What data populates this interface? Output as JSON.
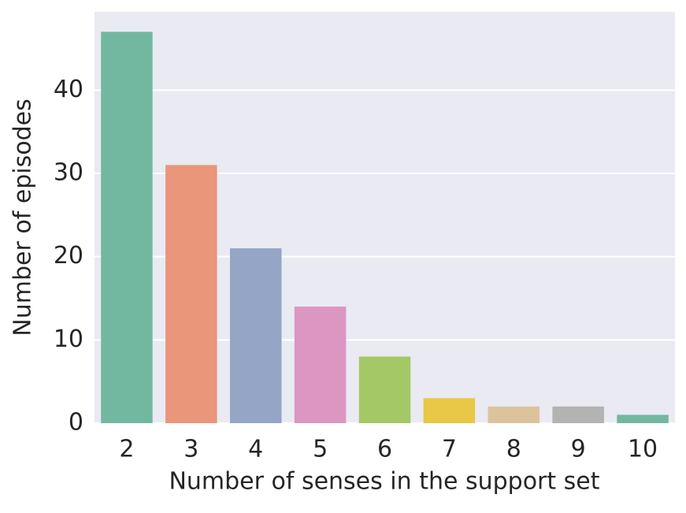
{
  "chart_data": {
    "type": "bar",
    "xlabel": "Number of senses in the support set",
    "ylabel": "Number of episodes",
    "categories": [
      "2",
      "3",
      "4",
      "5",
      "6",
      "7",
      "8",
      "9",
      "10"
    ],
    "values": [
      47,
      31,
      21,
      14,
      8,
      3,
      2,
      2,
      1
    ],
    "colors": [
      "#72b8a1",
      "#e9967a",
      "#95a5c6",
      "#dc96c2",
      "#a4c866",
      "#e8c846",
      "#dbc39c",
      "#b3b3b3",
      "#72b8a1"
    ],
    "ylim": [
      0,
      49.4
    ],
    "yticks": [
      0,
      10,
      20,
      30,
      40
    ],
    "grid": true
  }
}
